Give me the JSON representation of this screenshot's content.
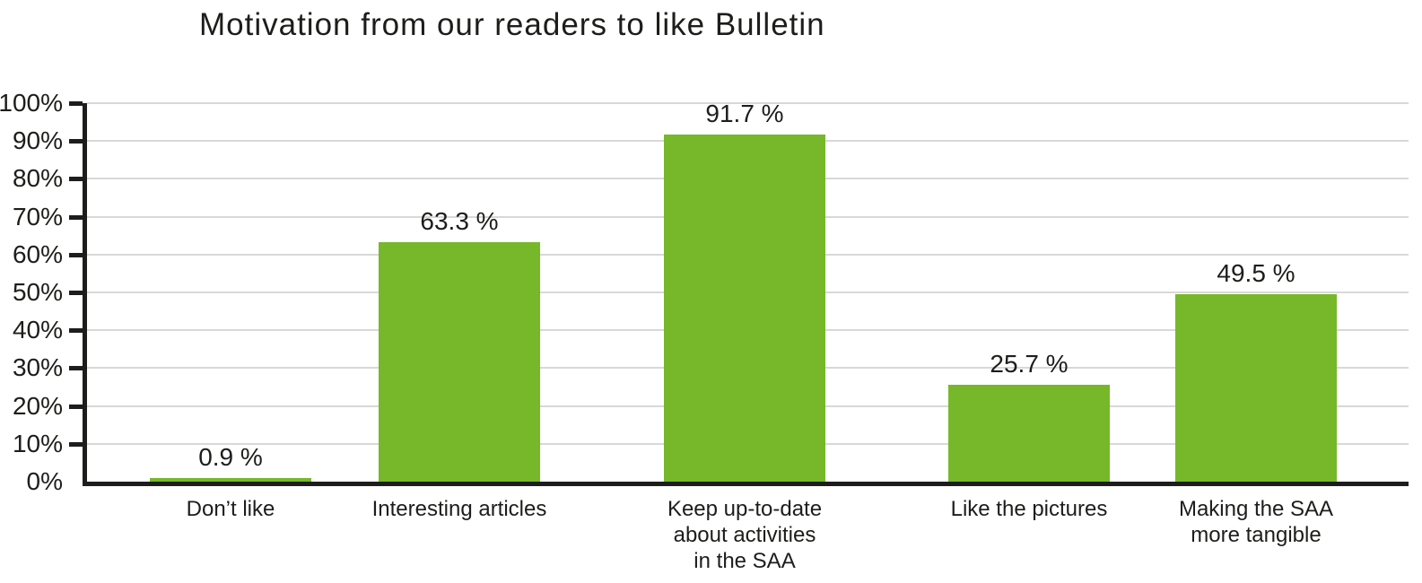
{
  "chart_data": {
    "type": "bar",
    "title": "Motivation from our readers to like Bulletin",
    "categories": [
      "Don’t like",
      "Interesting articles",
      "Keep up-to-date about activities in the SAA",
      "Like the pictures",
      "Making the SAA more tangible"
    ],
    "category_lines": [
      [
        "Don’t like"
      ],
      [
        "Interesting articles"
      ],
      [
        "Keep up-to-date",
        "about activities",
        "in the SAA"
      ],
      [
        "Like the pictures"
      ],
      [
        "Making the SAA",
        "more tangible"
      ]
    ],
    "values": [
      0.9,
      63.3,
      91.7,
      25.7,
      49.5
    ],
    "value_labels": [
      "0.9 %",
      "63.3 %",
      "91.7 %",
      "25.7 %",
      "49.5 %"
    ],
    "xlabel": "",
    "ylabel": "",
    "ylim": [
      0,
      100
    ],
    "ytick_step": 10,
    "ytick_labels": [
      "0%",
      "10%",
      "20%",
      "30%",
      "40%",
      "50%",
      "60%",
      "70%",
      "80%",
      "90%",
      "100%"
    ],
    "grid": "horizontal",
    "legend": "none"
  },
  "colors": {
    "bar": "#76b82a",
    "grid": "#d8d8d8",
    "axis": "#1d1d1b",
    "text": "#1d1d1b"
  }
}
